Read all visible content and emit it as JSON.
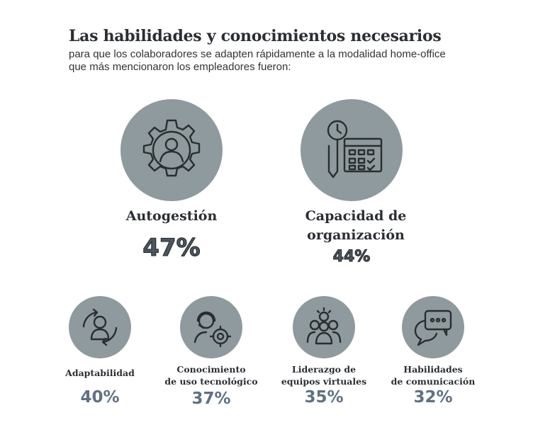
{
  "header": {
    "title": "Las habilidades y conocimientos necesarios",
    "subtitle_line1": "para que los colaboradores se adapten rápidamente a la modalidad home-office",
    "subtitle_line2": "que más mencionaron los empleadores fueron:"
  },
  "colors": {
    "circle": "#8f9a9e",
    "percent": "#5f7183",
    "title": "#2b2e33"
  },
  "skills": [
    {
      "label": "Autogestión",
      "percent": "47%",
      "icon": "gear-person-icon"
    },
    {
      "label_line1": "Capacidad de",
      "label_line2": "organización",
      "percent": "44%",
      "icon": "calendar-clock-icon"
    },
    {
      "label": "Adaptabilidad",
      "percent": "40%",
      "icon": "person-cycle-icon"
    },
    {
      "label_line1": "Conocimiento",
      "label_line2": "de uso tecnológico",
      "percent": "37%",
      "icon": "support-gear-icon"
    },
    {
      "label_line1": "Liderazgo de",
      "label_line2": "equipos virtuales",
      "percent": "35%",
      "icon": "team-idea-icon"
    },
    {
      "label_line1": "Habilidades",
      "label_line2": "de comunicación",
      "percent": "32%",
      "icon": "chat-bubbles-icon"
    }
  ]
}
